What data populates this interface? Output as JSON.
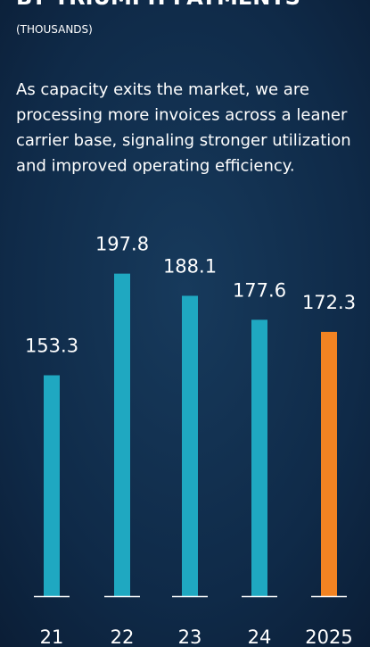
{
  "chart_data": {
    "type": "bar",
    "title": "BY TRIUMPH PAYMENTS",
    "subtitle": "(THOUSANDS)",
    "description": [
      "As capacity exits the market, we are",
      "processing more invoices across a leaner",
      "carrier base, signaling stronger utilization",
      "and improved operating efficiency."
    ],
    "categories": [
      "21",
      "22",
      "23",
      "24",
      "2025"
    ],
    "values": [
      153.3,
      197.8,
      188.1,
      177.6,
      172.3
    ],
    "colors": [
      "#1fa8c1",
      "#1fa8c1",
      "#1fa8c1",
      "#1fa8c1",
      "#f28322"
    ],
    "ylim": [
      56.6,
      200
    ]
  }
}
